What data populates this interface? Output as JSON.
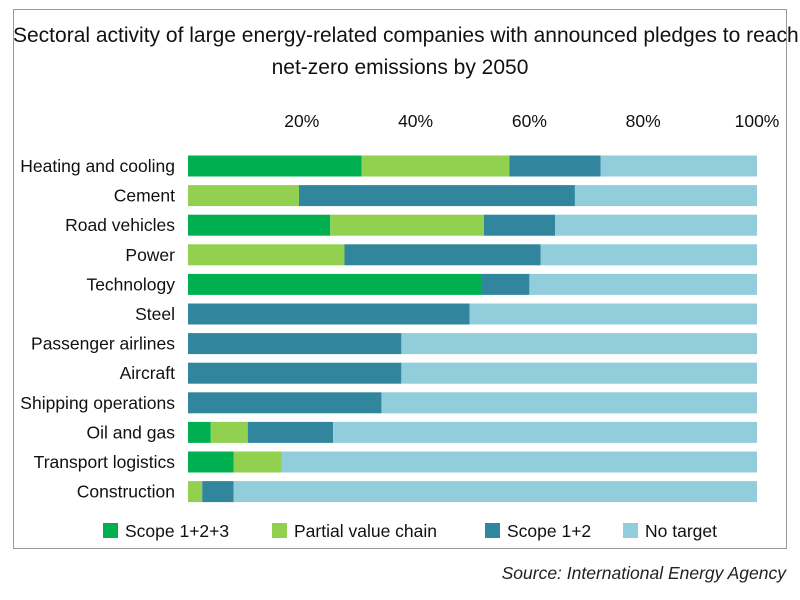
{
  "chart_data": {
    "type": "bar",
    "orientation": "horizontal",
    "stacked": true,
    "title_lines": [
      "Sectoral activity of large energy-related companies with announced pledges to reach",
      "net-zero emissions by 2050"
    ],
    "categories": [
      "Heating and cooling",
      "Cement",
      "Road vehicles",
      "Power",
      "Technology",
      "Steel",
      "Passenger airlines",
      "Aircraft",
      "Shipping operations",
      "Oil and gas",
      "Transport logistics",
      "Construction"
    ],
    "series": [
      {
        "name": "Scope 1+2+3",
        "color": "#00b050",
        "values": [
          30.5,
          0,
          25,
          0,
          51.5,
          0,
          0,
          0,
          0,
          4,
          8,
          0
        ]
      },
      {
        "name": "Partial value chain",
        "color": "#92d050",
        "values": [
          26,
          19.5,
          27,
          27.5,
          0,
          0,
          0,
          0,
          0,
          6.5,
          8.5,
          2.5
        ]
      },
      {
        "name": "Scope 1+2",
        "color": "#31859c",
        "values": [
          16,
          48.5,
          12.5,
          34.5,
          8.5,
          49.5,
          37.5,
          37.5,
          34,
          15,
          0,
          5.5
        ]
      },
      {
        "name": "No target",
        "color": "#92cddc",
        "values": [
          27.5,
          32,
          35.5,
          38,
          40,
          50.5,
          62.5,
          62.5,
          66,
          74.5,
          83.5,
          92
        ]
      }
    ],
    "x_ticks": [
      "20%",
      "40%",
      "60%",
      "80%",
      "100%"
    ],
    "x_tick_values": [
      20,
      40,
      60,
      80,
      100
    ],
    "xlim": [
      0,
      100
    ],
    "axis_position": "top",
    "legend_position": "bottom",
    "grid": false
  },
  "source": "Source: International Energy Agency"
}
